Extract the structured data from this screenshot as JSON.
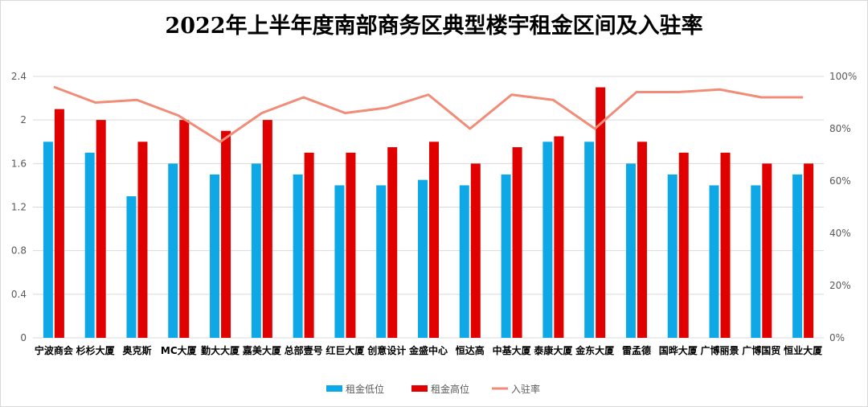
{
  "chart_data": {
    "type": "bar",
    "title": "2022年上半年度南部商务区典型楼宇租金区间及入驻率",
    "categories": [
      "宁波商会",
      "杉杉大厦",
      "奥克斯",
      "MC大厦",
      "勤大大厦",
      "嘉美大厦",
      "总部壹号",
      "红巨大厦",
      "创意设计",
      "金盛中心",
      "恒达高",
      "中基大厦",
      "泰康大厦",
      "金东大厦",
      "雷孟德",
      "国晔大厦",
      "广博丽景",
      "广博国贸",
      "恒业大厦"
    ],
    "series": [
      {
        "name": "租金低位",
        "type": "bar",
        "axis": "left",
        "color": "#0fa8e6",
        "values": [
          1.8,
          1.7,
          1.3,
          1.6,
          1.5,
          1.6,
          1.5,
          1.4,
          1.4,
          1.45,
          1.4,
          1.5,
          1.8,
          1.8,
          1.6,
          1.5,
          1.4,
          1.4,
          1.5
        ]
      },
      {
        "name": "租金高位",
        "type": "bar",
        "axis": "left",
        "color": "#e00000",
        "values": [
          2.1,
          2.0,
          1.8,
          2.0,
          1.9,
          2.0,
          1.7,
          1.7,
          1.75,
          1.8,
          1.6,
          1.75,
          1.85,
          2.3,
          1.8,
          1.7,
          1.7,
          1.6,
          1.6
        ]
      },
      {
        "name": "入驻率",
        "type": "line",
        "axis": "right",
        "color": "#f08c78",
        "values": [
          96,
          90,
          91,
          85,
          75,
          86,
          92,
          86,
          88,
          93,
          80,
          93,
          91,
          80,
          94,
          94,
          95,
          92,
          92
        ]
      }
    ],
    "y_left": {
      "min": 0,
      "max": 2.4,
      "ticks": [
        "0",
        "0.4",
        "0.8",
        "1.2",
        "1.6",
        "2",
        "2.4"
      ]
    },
    "y_right": {
      "min": 0,
      "max": 100,
      "ticks": [
        "0%",
        "20%",
        "40%",
        "60%",
        "80%",
        "100%"
      ]
    },
    "grid": true,
    "legend": "bottom"
  }
}
